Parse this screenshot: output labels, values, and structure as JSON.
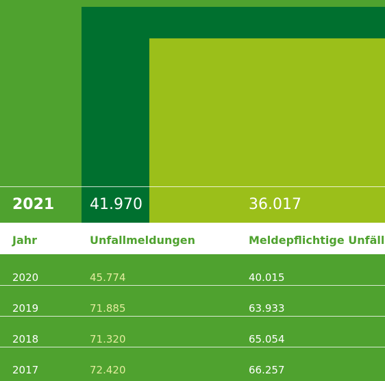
{
  "highlight": {
    "year": "2021",
    "unfallmeldungen": "41.970",
    "meldepflichtige": "36.017"
  },
  "table": {
    "header": [
      "Jahr",
      "Unfallmeldungen",
      "Meldepflichtige Unfälle"
    ],
    "rows": [
      [
        "2020",
        "45.774",
        "40.015"
      ],
      [
        "2019",
        "71.885",
        "63.933"
      ],
      [
        "2018",
        "71.320",
        "65.054"
      ],
      [
        "2017",
        "72.420",
        "66.257"
      ]
    ]
  }
}
